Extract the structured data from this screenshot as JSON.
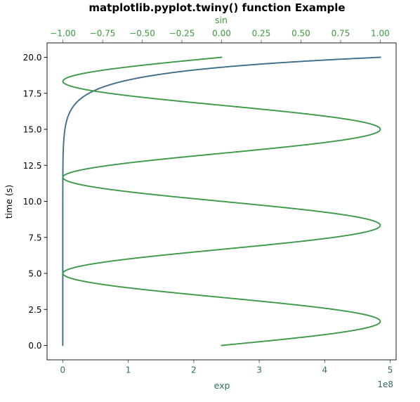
{
  "chart_data": {
    "type": "line",
    "title": "matplotlib.pyplot.twiny() function Example",
    "ylabel": "time (s)",
    "ylim": [
      -1.0,
      21.0
    ],
    "yticks": [
      0.0,
      2.5,
      5.0,
      7.5,
      10.0,
      12.5,
      15.0,
      17.5,
      20.0
    ],
    "ytick_labels": [
      "0.0",
      "2.5",
      "5.0",
      "7.5",
      "10.0",
      "12.5",
      "15.0",
      "17.5",
      "20.0"
    ],
    "bottom_axis": {
      "label": "exp",
      "xlim": [
        -0.24,
        5.09
      ],
      "xticks": [
        0,
        1,
        2,
        3,
        4,
        5
      ],
      "xtick_labels": [
        "0",
        "1",
        "2",
        "3",
        "4",
        "5"
      ],
      "offset_text": "1e8",
      "color": "#2f6e5e"
    },
    "top_axis": {
      "label": "sin",
      "xlim": [
        -1.1,
        1.1
      ],
      "xticks": [
        -1.0,
        -0.75,
        -0.5,
        -0.25,
        0.0,
        0.25,
        0.5,
        0.75,
        1.0
      ],
      "xtick_labels": [
        "−1.00",
        "−0.75",
        "−0.50",
        "−0.25",
        "0.00",
        "0.25",
        "0.50",
        "0.75",
        "1.00"
      ],
      "color": "#3a9a3a"
    },
    "series": [
      {
        "axis": "bottom",
        "function": "exp(t)",
        "t_range": [
          0.0,
          20.0
        ],
        "x_range_units_1e8": [
          0.0,
          4.85
        ],
        "color": "#3d6e8a"
      },
      {
        "axis": "top",
        "function": "sin(0.3 * pi * t)",
        "t_range": [
          0.0,
          20.0
        ],
        "x_range": [
          -1.0,
          1.0
        ],
        "color": "#3d9a48"
      }
    ],
    "grid": false,
    "legend": "none"
  }
}
